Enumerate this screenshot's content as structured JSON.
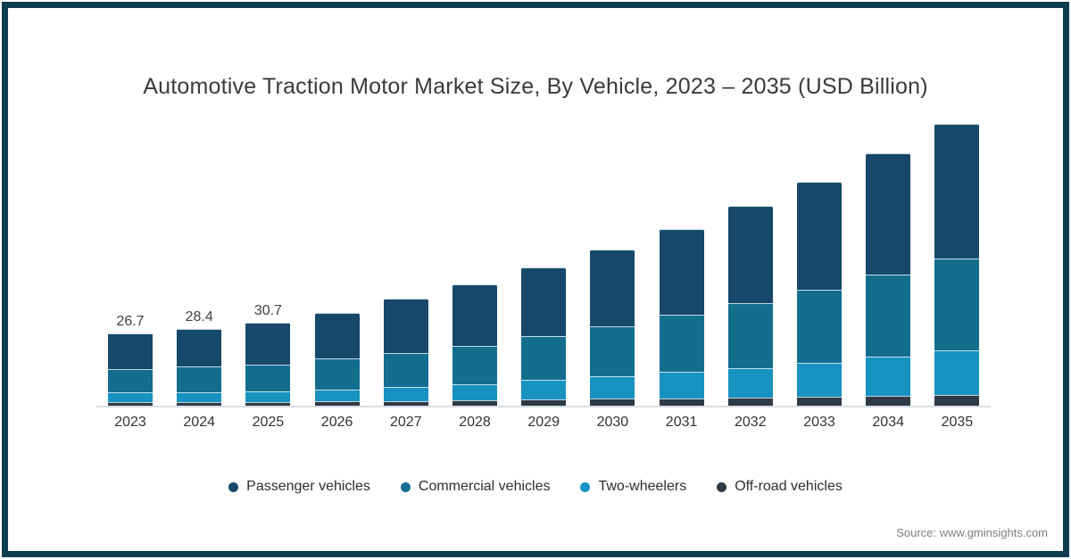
{
  "frame": {
    "border_color": "#0e3d50",
    "background": "#ffffff"
  },
  "title": "Automotive Traction Motor Market Size, By Vehicle, 2023 – 2035 (USD Billion)",
  "source": "Source: www.gminsights.com",
  "chart_data": {
    "type": "bar",
    "stacked": true,
    "unit": "USD Billion",
    "title": "Automotive Traction Motor Market Size, By Vehicle, 2023 – 2035 (USD Billion)",
    "xlabel": "",
    "ylabel": "",
    "grid": false,
    "y_axis_visible": false,
    "legend_position": "bottom",
    "categories": [
      "2023",
      "2024",
      "2025",
      "2026",
      "2027",
      "2028",
      "2029",
      "2030",
      "2031",
      "2032",
      "2033",
      "2034",
      "2035"
    ],
    "series": [
      {
        "name": "Passenger vehicles",
        "color": "#16486a",
        "values": [
          13.3,
          14.0,
          15.5,
          16.9,
          20.2,
          22.8,
          25.6,
          28.3,
          31.7,
          36.0,
          40.2,
          45.0,
          49.7
        ]
      },
      {
        "name": "Commercial vehicles",
        "color": "#136e8e",
        "values": [
          8.4,
          9.4,
          9.9,
          11.4,
          12.6,
          14.0,
          16.0,
          18.5,
          21.4,
          24.3,
          27.1,
          30.3,
          34.0
        ]
      },
      {
        "name": "Two-wheelers",
        "color": "#1792c1",
        "values": [
          3.8,
          3.7,
          3.9,
          4.4,
          5.0,
          5.9,
          7.3,
          8.4,
          9.6,
          10.6,
          12.3,
          14.4,
          16.5
        ]
      },
      {
        "name": "Off-road vehicles",
        "color": "#2e3a45",
        "values": [
          1.2,
          1.3,
          1.4,
          1.6,
          1.8,
          2.1,
          2.4,
          2.6,
          2.8,
          3.1,
          3.4,
          3.7,
          4.0
        ]
      }
    ],
    "totals": [
      26.7,
      28.4,
      30.7,
      34.3,
      39.6,
      44.8,
      51.3,
      57.8,
      65.5,
      74.0,
      83.0,
      93.4,
      104.2
    ],
    "bar_labels": [
      "26.7",
      "28.4",
      "30.7",
      "",
      "",
      "",
      "",
      "",
      "",
      "",
      "",
      "",
      ""
    ]
  }
}
